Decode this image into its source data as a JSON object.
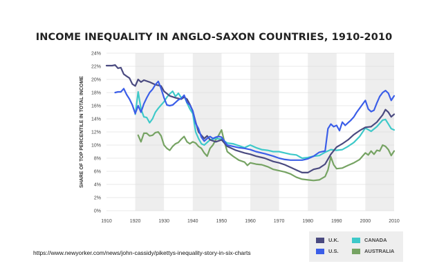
{
  "chart_data": {
    "type": "line",
    "title": "INCOME INEQUALITY IN ANGLO-SAXON COUNTRIES, 1910-2010",
    "ylabel": "SHARE OF TOP PERCENTILE IN TOTAL INCOME",
    "xlabel": "",
    "xlim": [
      1910,
      2010
    ],
    "ylim": [
      0,
      24
    ],
    "x_ticks": [
      "1910",
      "1920",
      "1930",
      "1940",
      "1950",
      "1960",
      "1970",
      "1980",
      "1990",
      "2000",
      "2010"
    ],
    "y_ticks": [
      "0%",
      "2%",
      "4%",
      "6%",
      "8%",
      "10%",
      "12%",
      "14%",
      "16%",
      "18%",
      "20%",
      "22%",
      "24%"
    ],
    "shaded_decades": [
      [
        1920,
        1930
      ],
      [
        1940,
        1950
      ],
      [
        1960,
        1970
      ],
      [
        1980,
        1990
      ],
      [
        2000,
        2010
      ]
    ],
    "grid": "horizontal",
    "legend_position": "bottom-right",
    "series": [
      {
        "name": "U.K.",
        "color": "#4a4a80",
        "points": [
          [
            1910,
            22.1
          ],
          [
            1912,
            22.1
          ],
          [
            1913,
            22.2
          ],
          [
            1914,
            21.7
          ],
          [
            1915,
            21.8
          ],
          [
            1916,
            20.8
          ],
          [
            1917,
            20.5
          ],
          [
            1918,
            20.2
          ],
          [
            1919,
            19.3
          ],
          [
            1920,
            19.0
          ],
          [
            1921,
            20.0
          ],
          [
            1922,
            19.6
          ],
          [
            1923,
            19.9
          ],
          [
            1925,
            19.6
          ],
          [
            1927,
            19.2
          ],
          [
            1929,
            19.0
          ],
          [
            1930,
            18.2
          ],
          [
            1932,
            17.5
          ],
          [
            1934,
            17.2
          ],
          [
            1936,
            17.0
          ],
          [
            1937,
            17.3
          ],
          [
            1938,
            17.0
          ],
          [
            1939,
            16.2
          ],
          [
            1940,
            15.2
          ],
          [
            1941,
            13.5
          ],
          [
            1942,
            12.0
          ],
          [
            1943,
            11.5
          ],
          [
            1944,
            11.0
          ],
          [
            1945,
            11.4
          ],
          [
            1946,
            10.8
          ],
          [
            1948,
            10.5
          ],
          [
            1950,
            10.8
          ],
          [
            1952,
            9.8
          ],
          [
            1955,
            9.2
          ],
          [
            1958,
            8.8
          ],
          [
            1960,
            8.6
          ],
          [
            1962,
            8.3
          ],
          [
            1965,
            8.0
          ],
          [
            1968,
            7.5
          ],
          [
            1970,
            7.3
          ],
          [
            1972,
            7.0
          ],
          [
            1974,
            6.6
          ],
          [
            1976,
            6.2
          ],
          [
            1978,
            5.8
          ],
          [
            1980,
            5.8
          ],
          [
            1982,
            6.3
          ],
          [
            1984,
            6.5
          ],
          [
            1986,
            7.1
          ],
          [
            1988,
            8.6
          ],
          [
            1990,
            9.7
          ],
          [
            1992,
            10.2
          ],
          [
            1994,
            10.8
          ],
          [
            1996,
            11.6
          ],
          [
            1998,
            12.2
          ],
          [
            2000,
            12.7
          ],
          [
            2002,
            12.8
          ],
          [
            2004,
            13.5
          ],
          [
            2006,
            14.6
          ],
          [
            2007,
            15.4
          ],
          [
            2008,
            15.0
          ],
          [
            2009,
            14.3
          ],
          [
            2010,
            14.7
          ]
        ]
      },
      {
        "name": "U.S.",
        "color": "#3b5ee8",
        "points": [
          [
            1913,
            18.0
          ],
          [
            1914,
            18.1
          ],
          [
            1915,
            18.1
          ],
          [
            1916,
            18.6
          ],
          [
            1917,
            17.7
          ],
          [
            1918,
            17.0
          ],
          [
            1919,
            16.1
          ],
          [
            1920,
            14.8
          ],
          [
            1921,
            16.0
          ],
          [
            1922,
            15.0
          ],
          [
            1923,
            16.3
          ],
          [
            1924,
            17.2
          ],
          [
            1925,
            18.0
          ],
          [
            1926,
            18.5
          ],
          [
            1927,
            19.2
          ],
          [
            1928,
            19.7
          ],
          [
            1929,
            18.6
          ],
          [
            1930,
            17.2
          ],
          [
            1931,
            16.1
          ],
          [
            1932,
            16.0
          ],
          [
            1933,
            16.1
          ],
          [
            1934,
            16.5
          ],
          [
            1935,
            16.9
          ],
          [
            1936,
            17.1
          ],
          [
            1937,
            17.6
          ],
          [
            1938,
            16.5
          ],
          [
            1939,
            16.1
          ],
          [
            1940,
            15.2
          ],
          [
            1941,
            13.3
          ],
          [
            1942,
            12.5
          ],
          [
            1943,
            11.2
          ],
          [
            1944,
            10.6
          ],
          [
            1945,
            11.0
          ],
          [
            1946,
            11.3
          ],
          [
            1947,
            11.0
          ],
          [
            1948,
            11.2
          ],
          [
            1949,
            11.3
          ],
          [
            1950,
            11.2
          ],
          [
            1952,
            10.0
          ],
          [
            1954,
            9.8
          ],
          [
            1956,
            9.6
          ],
          [
            1958,
            9.5
          ],
          [
            1960,
            9.3
          ],
          [
            1962,
            9.0
          ],
          [
            1965,
            8.7
          ],
          [
            1968,
            8.3
          ],
          [
            1970,
            8.0
          ],
          [
            1972,
            7.8
          ],
          [
            1974,
            7.7
          ],
          [
            1976,
            7.7
          ],
          [
            1978,
            7.7
          ],
          [
            1980,
            7.9
          ],
          [
            1982,
            8.3
          ],
          [
            1984,
            8.9
          ],
          [
            1986,
            9.1
          ],
          [
            1987,
            12.5
          ],
          [
            1988,
            13.2
          ],
          [
            1989,
            12.8
          ],
          [
            1990,
            13.0
          ],
          [
            1991,
            12.2
          ],
          [
            1992,
            13.5
          ],
          [
            1993,
            13.0
          ],
          [
            1994,
            13.4
          ],
          [
            1995,
            13.8
          ],
          [
            1996,
            14.3
          ],
          [
            1997,
            15.0
          ],
          [
            1998,
            15.6
          ],
          [
            1999,
            16.2
          ],
          [
            2000,
            16.8
          ],
          [
            2001,
            15.5
          ],
          [
            2002,
            15.1
          ],
          [
            2003,
            15.3
          ],
          [
            2004,
            16.4
          ],
          [
            2005,
            17.4
          ],
          [
            2006,
            18.0
          ],
          [
            2007,
            18.3
          ],
          [
            2008,
            17.9
          ],
          [
            2009,
            16.8
          ],
          [
            2010,
            17.5
          ]
        ]
      },
      {
        "name": "CANADA",
        "color": "#3ec9c9",
        "points": [
          [
            1920,
            14.7
          ],
          [
            1921,
            18.1
          ],
          [
            1922,
            15.5
          ],
          [
            1923,
            14.3
          ],
          [
            1924,
            14.2
          ],
          [
            1925,
            13.4
          ],
          [
            1926,
            14.0
          ],
          [
            1927,
            15.0
          ],
          [
            1928,
            15.6
          ],
          [
            1929,
            16.1
          ],
          [
            1930,
            16.6
          ],
          [
            1931,
            17.3
          ],
          [
            1932,
            17.8
          ],
          [
            1933,
            18.2
          ],
          [
            1934,
            17.4
          ],
          [
            1935,
            17.9
          ],
          [
            1936,
            17.2
          ],
          [
            1937,
            17.5
          ],
          [
            1938,
            16.4
          ],
          [
            1939,
            15.5
          ],
          [
            1940,
            14.8
          ],
          [
            1941,
            12.0
          ],
          [
            1942,
            11.0
          ],
          [
            1943,
            10.2
          ],
          [
            1944,
            10.0
          ],
          [
            1945,
            10.4
          ],
          [
            1946,
            10.8
          ],
          [
            1948,
            11.0
          ],
          [
            1950,
            10.9
          ],
          [
            1952,
            10.3
          ],
          [
            1954,
            10.2
          ],
          [
            1956,
            9.9
          ],
          [
            1958,
            9.6
          ],
          [
            1960,
            10.0
          ],
          [
            1962,
            9.6
          ],
          [
            1964,
            9.3
          ],
          [
            1966,
            9.2
          ],
          [
            1968,
            9.0
          ],
          [
            1970,
            9.0
          ],
          [
            1972,
            8.8
          ],
          [
            1974,
            8.6
          ],
          [
            1976,
            8.5
          ],
          [
            1978,
            8.0
          ],
          [
            1980,
            8.1
          ],
          [
            1982,
            8.3
          ],
          [
            1984,
            8.4
          ],
          [
            1986,
            8.9
          ],
          [
            1988,
            9.3
          ],
          [
            1990,
            9.2
          ],
          [
            1992,
            9.3
          ],
          [
            1994,
            9.8
          ],
          [
            1996,
            10.4
          ],
          [
            1998,
            11.3
          ],
          [
            2000,
            12.6
          ],
          [
            2002,
            12.1
          ],
          [
            2004,
            12.8
          ],
          [
            2006,
            13.8
          ],
          [
            2007,
            13.9
          ],
          [
            2008,
            13.2
          ],
          [
            2009,
            12.5
          ],
          [
            2010,
            12.3
          ]
        ]
      },
      {
        "name": "AUSTRALIA",
        "color": "#76a363",
        "points": [
          [
            1921,
            11.5
          ],
          [
            1922,
            10.5
          ],
          [
            1923,
            11.8
          ],
          [
            1924,
            11.8
          ],
          [
            1925,
            11.4
          ],
          [
            1926,
            11.5
          ],
          [
            1927,
            11.9
          ],
          [
            1928,
            12.0
          ],
          [
            1929,
            11.4
          ],
          [
            1930,
            10.0
          ],
          [
            1931,
            9.5
          ],
          [
            1932,
            9.2
          ],
          [
            1933,
            9.8
          ],
          [
            1934,
            10.2
          ],
          [
            1935,
            10.4
          ],
          [
            1936,
            10.9
          ],
          [
            1937,
            11.3
          ],
          [
            1938,
            10.5
          ],
          [
            1939,
            10.2
          ],
          [
            1940,
            10.5
          ],
          [
            1941,
            10.3
          ],
          [
            1942,
            9.8
          ],
          [
            1943,
            9.5
          ],
          [
            1944,
            8.8
          ],
          [
            1945,
            8.3
          ],
          [
            1946,
            9.5
          ],
          [
            1947,
            10.0
          ],
          [
            1948,
            10.8
          ],
          [
            1949,
            11.5
          ],
          [
            1950,
            12.3
          ],
          [
            1951,
            10.5
          ],
          [
            1952,
            9.0
          ],
          [
            1954,
            8.3
          ],
          [
            1956,
            7.7
          ],
          [
            1958,
            7.4
          ],
          [
            1959,
            6.9
          ],
          [
            1960,
            7.3
          ],
          [
            1962,
            7.1
          ],
          [
            1964,
            7.0
          ],
          [
            1966,
            6.7
          ],
          [
            1968,
            6.3
          ],
          [
            1970,
            6.1
          ],
          [
            1972,
            5.9
          ],
          [
            1974,
            5.6
          ],
          [
            1976,
            5.1
          ],
          [
            1978,
            4.8
          ],
          [
            1980,
            4.7
          ],
          [
            1982,
            4.6
          ],
          [
            1984,
            4.7
          ],
          [
            1986,
            5.2
          ],
          [
            1987,
            6.2
          ],
          [
            1988,
            8.2
          ],
          [
            1989,
            7.0
          ],
          [
            1990,
            6.4
          ],
          [
            1992,
            6.5
          ],
          [
            1994,
            6.9
          ],
          [
            1996,
            7.3
          ],
          [
            1998,
            7.8
          ],
          [
            2000,
            8.8
          ],
          [
            2001,
            8.5
          ],
          [
            2002,
            9.1
          ],
          [
            2003,
            8.6
          ],
          [
            2004,
            9.2
          ],
          [
            2005,
            9.1
          ],
          [
            2006,
            10.0
          ],
          [
            2007,
            9.8
          ],
          [
            2008,
            9.3
          ],
          [
            2009,
            8.4
          ],
          [
            2010,
            9.1
          ]
        ]
      }
    ]
  },
  "source_text": "https://www.newyorker.com/news/john-cassidy/pikettys-inequality-story-in-six-charts"
}
